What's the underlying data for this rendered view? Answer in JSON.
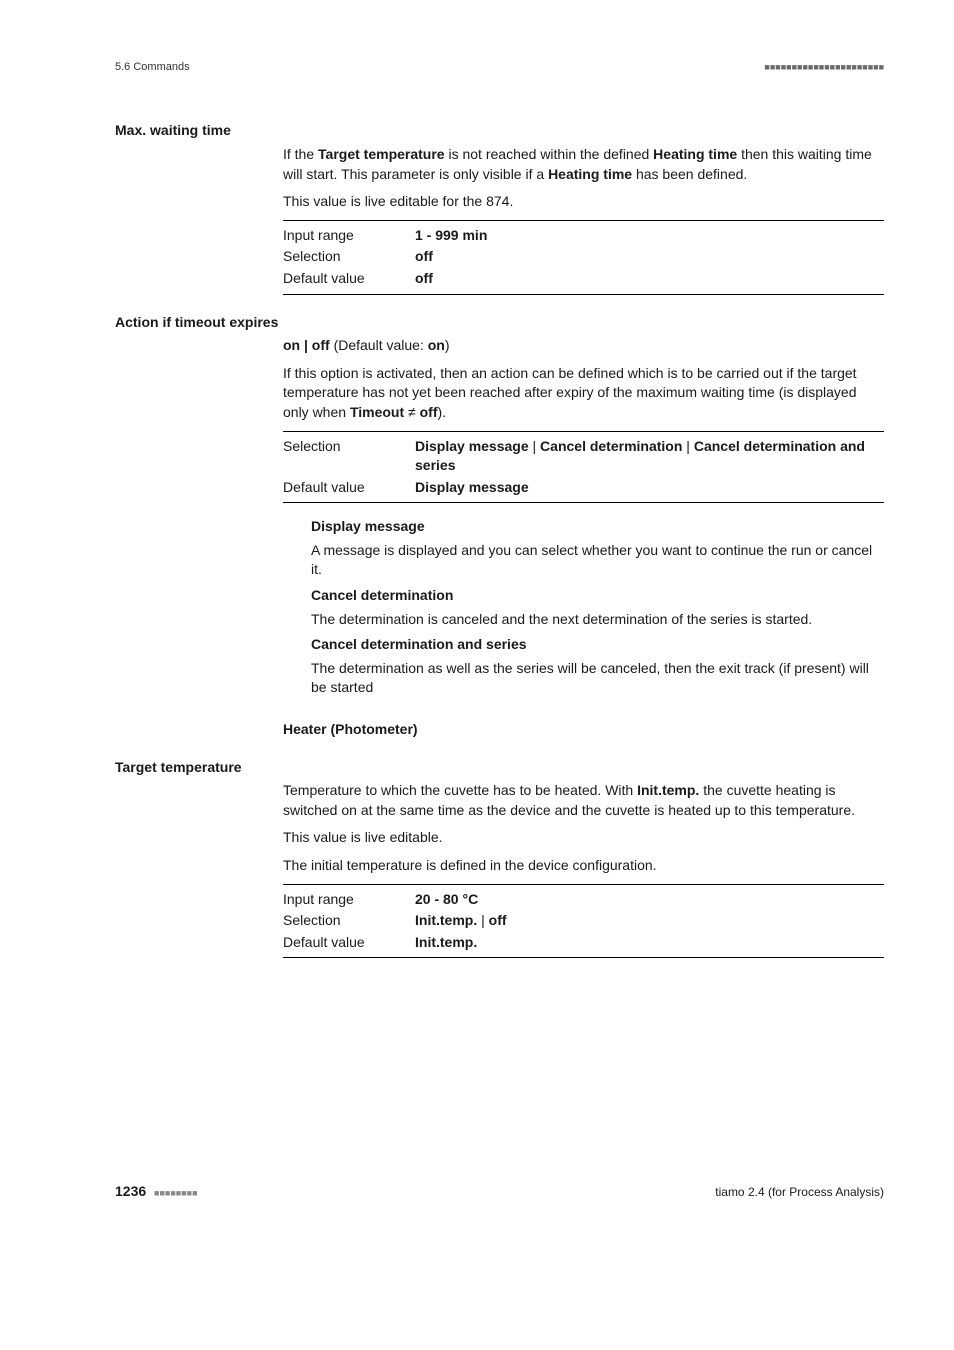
{
  "header": {
    "left": "5.6 Commands",
    "dots": "■■■■■■■■■■■■■■■■■■■■■■"
  },
  "s1": {
    "label": "Max. waiting time",
    "p1a": "If the ",
    "p1b": "Target temperature",
    "p1c": " is not reached within the defined ",
    "p1d": "Heating time",
    "p1e": " then this waiting time will start. This parameter is only visible if a ",
    "p1f": "Heating time",
    "p1g": " has been defined.",
    "p2": "This value is live editable for the 874.",
    "rows": {
      "r1k": "Input range",
      "r1v": "1 - 999 min",
      "r2k": "Selection",
      "r2v": "off",
      "r3k": "Default value",
      "r3v": "off"
    }
  },
  "s2": {
    "label": "Action if timeout expires",
    "line1a": "on | off",
    "line1b": " (Default value: ",
    "line1c": "on",
    "line1d": ")",
    "p1": "If this option is activated, then an action can be defined which is to be carried out if the target temperature has not yet been reached after expiry of the maximum waiting time (is displayed only when ",
    "p1b": "Timeout",
    "p1c": " ≠ ",
    "p1d": "off",
    "p1e": ").",
    "rows": {
      "r1k": "Selection",
      "r1v1": "Display message",
      "r1v2": "Cancel determination",
      "r1v3": "Cancel determination and series",
      "r2k": "Default value",
      "r2v": "Display message"
    },
    "opt1t": "Display message",
    "opt1p": "A message is displayed and you can select whether you want to continue the run or cancel it.",
    "opt2t": "Cancel determination",
    "opt2p": "The determination is canceled and the next determination of the series is started.",
    "opt3t": "Cancel determination and series",
    "opt3p": "The determination as well as the series will be canceled, then the exit track (if present) will be started"
  },
  "s3": {
    "heading": "Heater (Photometer)",
    "label": "Target temperature",
    "p1a": "Temperature to which the cuvette has to be heated. With ",
    "p1b": "Init.temp.",
    "p1c": " the cuvette heating is switched on at the same time as the device and the cuvette is heated up to this temperature.",
    "p2": "This value is live editable.",
    "p3": "The initial temperature is defined in the device configuration.",
    "rows": {
      "r1k": "Input range",
      "r1v": "20 - 80 °C",
      "r2k": "Selection",
      "r2v1": "Init.temp.",
      "r2v2": "off",
      "r3k": "Default value",
      "r3v": "Init.temp."
    }
  },
  "footer": {
    "page": "1236",
    "dots": "■■■■■■■■",
    "right": "tiamo 2.4 (for Process Analysis)"
  }
}
